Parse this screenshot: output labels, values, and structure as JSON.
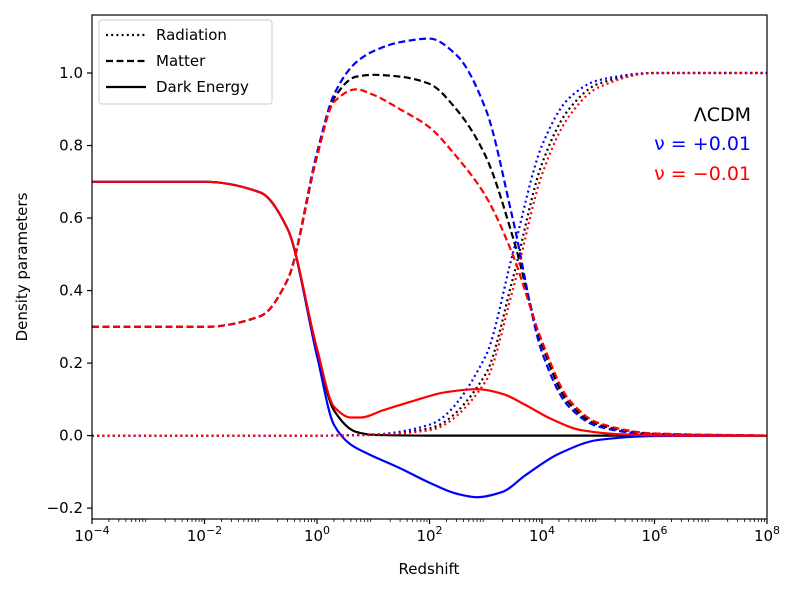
{
  "chart_data": {
    "type": "line",
    "title": "",
    "xlabel": "Redshift",
    "ylabel": "Density parameters",
    "xscale": "log",
    "xlim": [
      0.0001,
      100000000
    ],
    "ylim": [
      -0.23,
      1.16
    ],
    "x_ticks": [
      {
        "value": 0.0001,
        "base": "10",
        "exp": "−4"
      },
      {
        "value": 0.01,
        "base": "10",
        "exp": "−2"
      },
      {
        "value": 1,
        "base": "10",
        "exp": "0"
      },
      {
        "value": 100,
        "base": "10",
        "exp": "2"
      },
      {
        "value": 10000,
        "base": "10",
        "exp": "4"
      },
      {
        "value": 1000000,
        "base": "10",
        "exp": "6"
      },
      {
        "value": 100000000,
        "base": "10",
        "exp": "8"
      }
    ],
    "y_ticks": [
      {
        "value": -0.2,
        "label": "−0.2"
      },
      {
        "value": 0.0,
        "label": "0.0"
      },
      {
        "value": 0.2,
        "label": "0.2"
      },
      {
        "value": 0.4,
        "label": "0.4"
      },
      {
        "value": 0.6,
        "label": "0.6"
      },
      {
        "value": 0.8,
        "label": "0.8"
      },
      {
        "value": 1.0,
        "label": "1.0"
      }
    ],
    "legend": {
      "placement": "top-left",
      "entries": [
        {
          "label": "Radiation",
          "style": "dotted"
        },
        {
          "label": "Matter",
          "style": "dashed"
        },
        {
          "label": "Dark Energy",
          "style": "solid"
        }
      ]
    },
    "annotations": [
      {
        "text": "ΛCDM",
        "color": "#000000"
      },
      {
        "text": "ν = +0.01",
        "color": "#0000ff"
      },
      {
        "text": "ν = −0.01",
        "color": "#ff0000"
      }
    ],
    "series": [
      {
        "name": "ΛCDM Radiation",
        "model": "ΛCDM",
        "component": "Radiation",
        "style": "dotted",
        "color": "#000000",
        "x": [
          0.0001,
          1,
          10,
          100,
          1000,
          3000,
          10000,
          30000,
          100000,
          1000000,
          100000000
        ],
        "y": [
          0.0,
          0.0,
          0.002,
          0.02,
          0.17,
          0.43,
          0.75,
          0.9,
          0.97,
          1.0,
          1.0
        ]
      },
      {
        "name": "ΛCDM Matter",
        "model": "ΛCDM",
        "component": "Matter",
        "style": "dashed",
        "color": "#000000",
        "x": [
          0.0001,
          0.01,
          0.1,
          0.3,
          1,
          2,
          5,
          10,
          30,
          100,
          300,
          1000,
          3000,
          10000,
          30000,
          100000,
          1000000,
          100000000
        ],
        "y": [
          0.3,
          0.3,
          0.33,
          0.43,
          0.77,
          0.93,
          0.99,
          0.995,
          0.99,
          0.97,
          0.9,
          0.77,
          0.55,
          0.25,
          0.09,
          0.03,
          0.005,
          0.0
        ]
      },
      {
        "name": "ΛCDM Dark Energy",
        "model": "ΛCDM",
        "component": "Dark Energy",
        "style": "solid",
        "color": "#000000",
        "x": [
          0.0001,
          0.01,
          0.1,
          0.3,
          1,
          2,
          5,
          10,
          100,
          100000000
        ],
        "y": [
          0.7,
          0.7,
          0.67,
          0.57,
          0.23,
          0.07,
          0.01,
          0.002,
          0.0,
          0.0
        ]
      },
      {
        "name": "ν=+0.01 Radiation",
        "model": "ν = +0.01",
        "component": "Radiation",
        "style": "dotted",
        "color": "#0000ff",
        "x": [
          0.0001,
          1,
          10,
          100,
          1000,
          3000,
          10000,
          30000,
          100000,
          1000000,
          100000000
        ],
        "y": [
          0.0,
          0.0,
          0.003,
          0.03,
          0.22,
          0.5,
          0.8,
          0.93,
          0.98,
          1.0,
          1.0
        ]
      },
      {
        "name": "ν=+0.01 Matter",
        "model": "ν = +0.01",
        "component": "Matter",
        "style": "dashed",
        "color": "#0000ff",
        "x": [
          0.0001,
          0.01,
          0.1,
          0.3,
          1,
          2,
          5,
          10,
          30,
          100,
          300,
          1000,
          3000,
          10000,
          30000,
          100000,
          1000000,
          100000000
        ],
        "y": [
          0.3,
          0.3,
          0.33,
          0.43,
          0.78,
          0.94,
          1.03,
          1.06,
          1.085,
          1.095,
          1.05,
          0.9,
          0.6,
          0.23,
          0.08,
          0.025,
          0.003,
          0.0
        ]
      },
      {
        "name": "ν=+0.01 Dark Energy",
        "model": "ν = +0.01",
        "component": "Dark Energy",
        "style": "solid",
        "color": "#0000ff",
        "x": [
          0.0001,
          0.01,
          0.1,
          0.3,
          1,
          2,
          4,
          8,
          30,
          100,
          300,
          700,
          2000,
          5000,
          20000,
          100000,
          1000000,
          100000000
        ],
        "y": [
          0.7,
          0.7,
          0.67,
          0.57,
          0.22,
          0.03,
          -0.025,
          -0.05,
          -0.09,
          -0.13,
          -0.16,
          -0.17,
          -0.155,
          -0.11,
          -0.05,
          -0.012,
          -0.001,
          0.0
        ]
      },
      {
        "name": "ν=−0.01 Radiation",
        "model": "ν = −0.01",
        "component": "Radiation",
        "style": "dotted",
        "color": "#ff0000",
        "x": [
          0.0001,
          1,
          10,
          100,
          1000,
          3000,
          10000,
          30000,
          100000,
          1000000,
          100000000
        ],
        "y": [
          0.0,
          0.0,
          0.002,
          0.015,
          0.15,
          0.4,
          0.72,
          0.88,
          0.96,
          1.0,
          1.0
        ]
      },
      {
        "name": "ν=−0.01 Matter",
        "model": "ν = −0.01",
        "component": "Matter",
        "style": "dashed",
        "color": "#ff0000",
        "x": [
          0.0001,
          0.01,
          0.1,
          0.3,
          1,
          2,
          5,
          10,
          30,
          100,
          300,
          1000,
          3000,
          10000,
          30000,
          100000,
          1000000,
          100000000
        ],
        "y": [
          0.3,
          0.3,
          0.33,
          0.43,
          0.77,
          0.92,
          0.955,
          0.94,
          0.9,
          0.85,
          0.77,
          0.66,
          0.5,
          0.26,
          0.1,
          0.035,
          0.006,
          0.0
        ]
      },
      {
        "name": "ν=−0.01 Dark Energy",
        "model": "ν = −0.01",
        "component": "Dark Energy",
        "style": "solid",
        "color": "#ff0000",
        "x": [
          0.0001,
          0.01,
          0.1,
          0.3,
          1,
          2,
          4,
          6,
          15,
          50,
          200,
          700,
          2000,
          5000,
          15000,
          50000,
          300000,
          3000000,
          100000000
        ],
        "y": [
          0.7,
          0.7,
          0.67,
          0.57,
          0.24,
          0.08,
          0.05,
          0.05,
          0.07,
          0.095,
          0.12,
          0.128,
          0.115,
          0.085,
          0.045,
          0.015,
          0.003,
          0.0,
          0.0
        ]
      }
    ]
  }
}
